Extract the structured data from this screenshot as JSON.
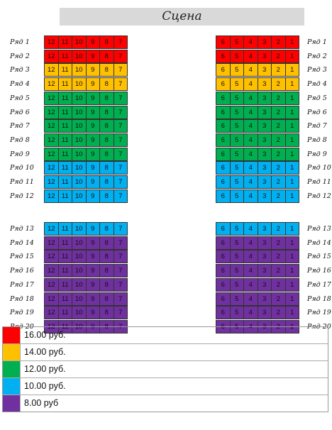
{
  "stage_label": "Сцена",
  "colors": {
    "red": "#ff0000",
    "orange": "#ffc000",
    "green": "#00b050",
    "blue": "#00b0f0",
    "purple": "#7030a0"
  },
  "left_seats": [
    "12",
    "11",
    "10",
    "9",
    "8",
    "7"
  ],
  "right_seats": [
    "6",
    "5",
    "4",
    "3",
    "2",
    "1"
  ],
  "rows": [
    {
      "label": "Ряд 1",
      "color": "red"
    },
    {
      "label": "Ряд 2",
      "color": "red"
    },
    {
      "label": "Ряд 3",
      "color": "orange"
    },
    {
      "label": "Ряд 4",
      "color": "orange"
    },
    {
      "label": "Ряд 5",
      "color": "green"
    },
    {
      "label": "Ряд 6",
      "color": "green"
    },
    {
      "label": "Ряд 7",
      "color": "green"
    },
    {
      "label": "Ряд 8",
      "color": "green"
    },
    {
      "label": "Ряд 9",
      "color": "green"
    },
    {
      "label": "Ряд 10",
      "color": "blue"
    },
    {
      "label": "Ряд 11",
      "color": "blue"
    },
    {
      "label": "Ряд 12",
      "color": "blue"
    },
    {
      "label": "Ряд 13",
      "color": "blue"
    },
    {
      "label": "Ряд 14",
      "color": "purple"
    },
    {
      "label": "Ряд 15",
      "color": "purple"
    },
    {
      "label": "Ряд 16",
      "color": "purple"
    },
    {
      "label": "Ряд 17",
      "color": "purple"
    },
    {
      "label": "Ряд 18",
      "color": "purple"
    },
    {
      "label": "Ряд 19",
      "color": "purple"
    },
    {
      "label": "Ряд 20",
      "color": "purple"
    }
  ],
  "legend": [
    {
      "color": "red",
      "label": "16.00 руб."
    },
    {
      "color": "orange",
      "label": "14.00 руб."
    },
    {
      "color": "green",
      "label": "12.00 руб."
    },
    {
      "color": "blue",
      "label": "10.00 руб."
    },
    {
      "color": "purple",
      "label": "8.00 руб"
    }
  ]
}
